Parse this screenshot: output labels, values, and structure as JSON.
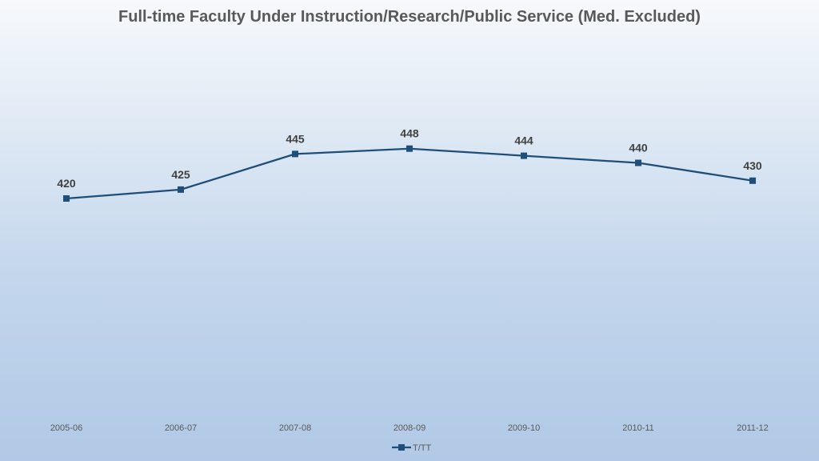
{
  "chart_data": {
    "type": "line",
    "title": "Full-time Faculty Under Instruction/Research/Public Service (Med. Excluded)",
    "categories": [
      "2005-06",
      "2006-07",
      "2007-08",
      "2008-09",
      "2009-10",
      "2010-11",
      "2011-12"
    ],
    "series": [
      {
        "name": "T/TT",
        "values": [
          420,
          425,
          445,
          448,
          444,
          440,
          430
        ],
        "color": "#1f4e79"
      }
    ],
    "xlabel": "",
    "ylabel": "",
    "ylim": [
      300,
      500
    ],
    "grid": false,
    "legend": "bottom"
  }
}
